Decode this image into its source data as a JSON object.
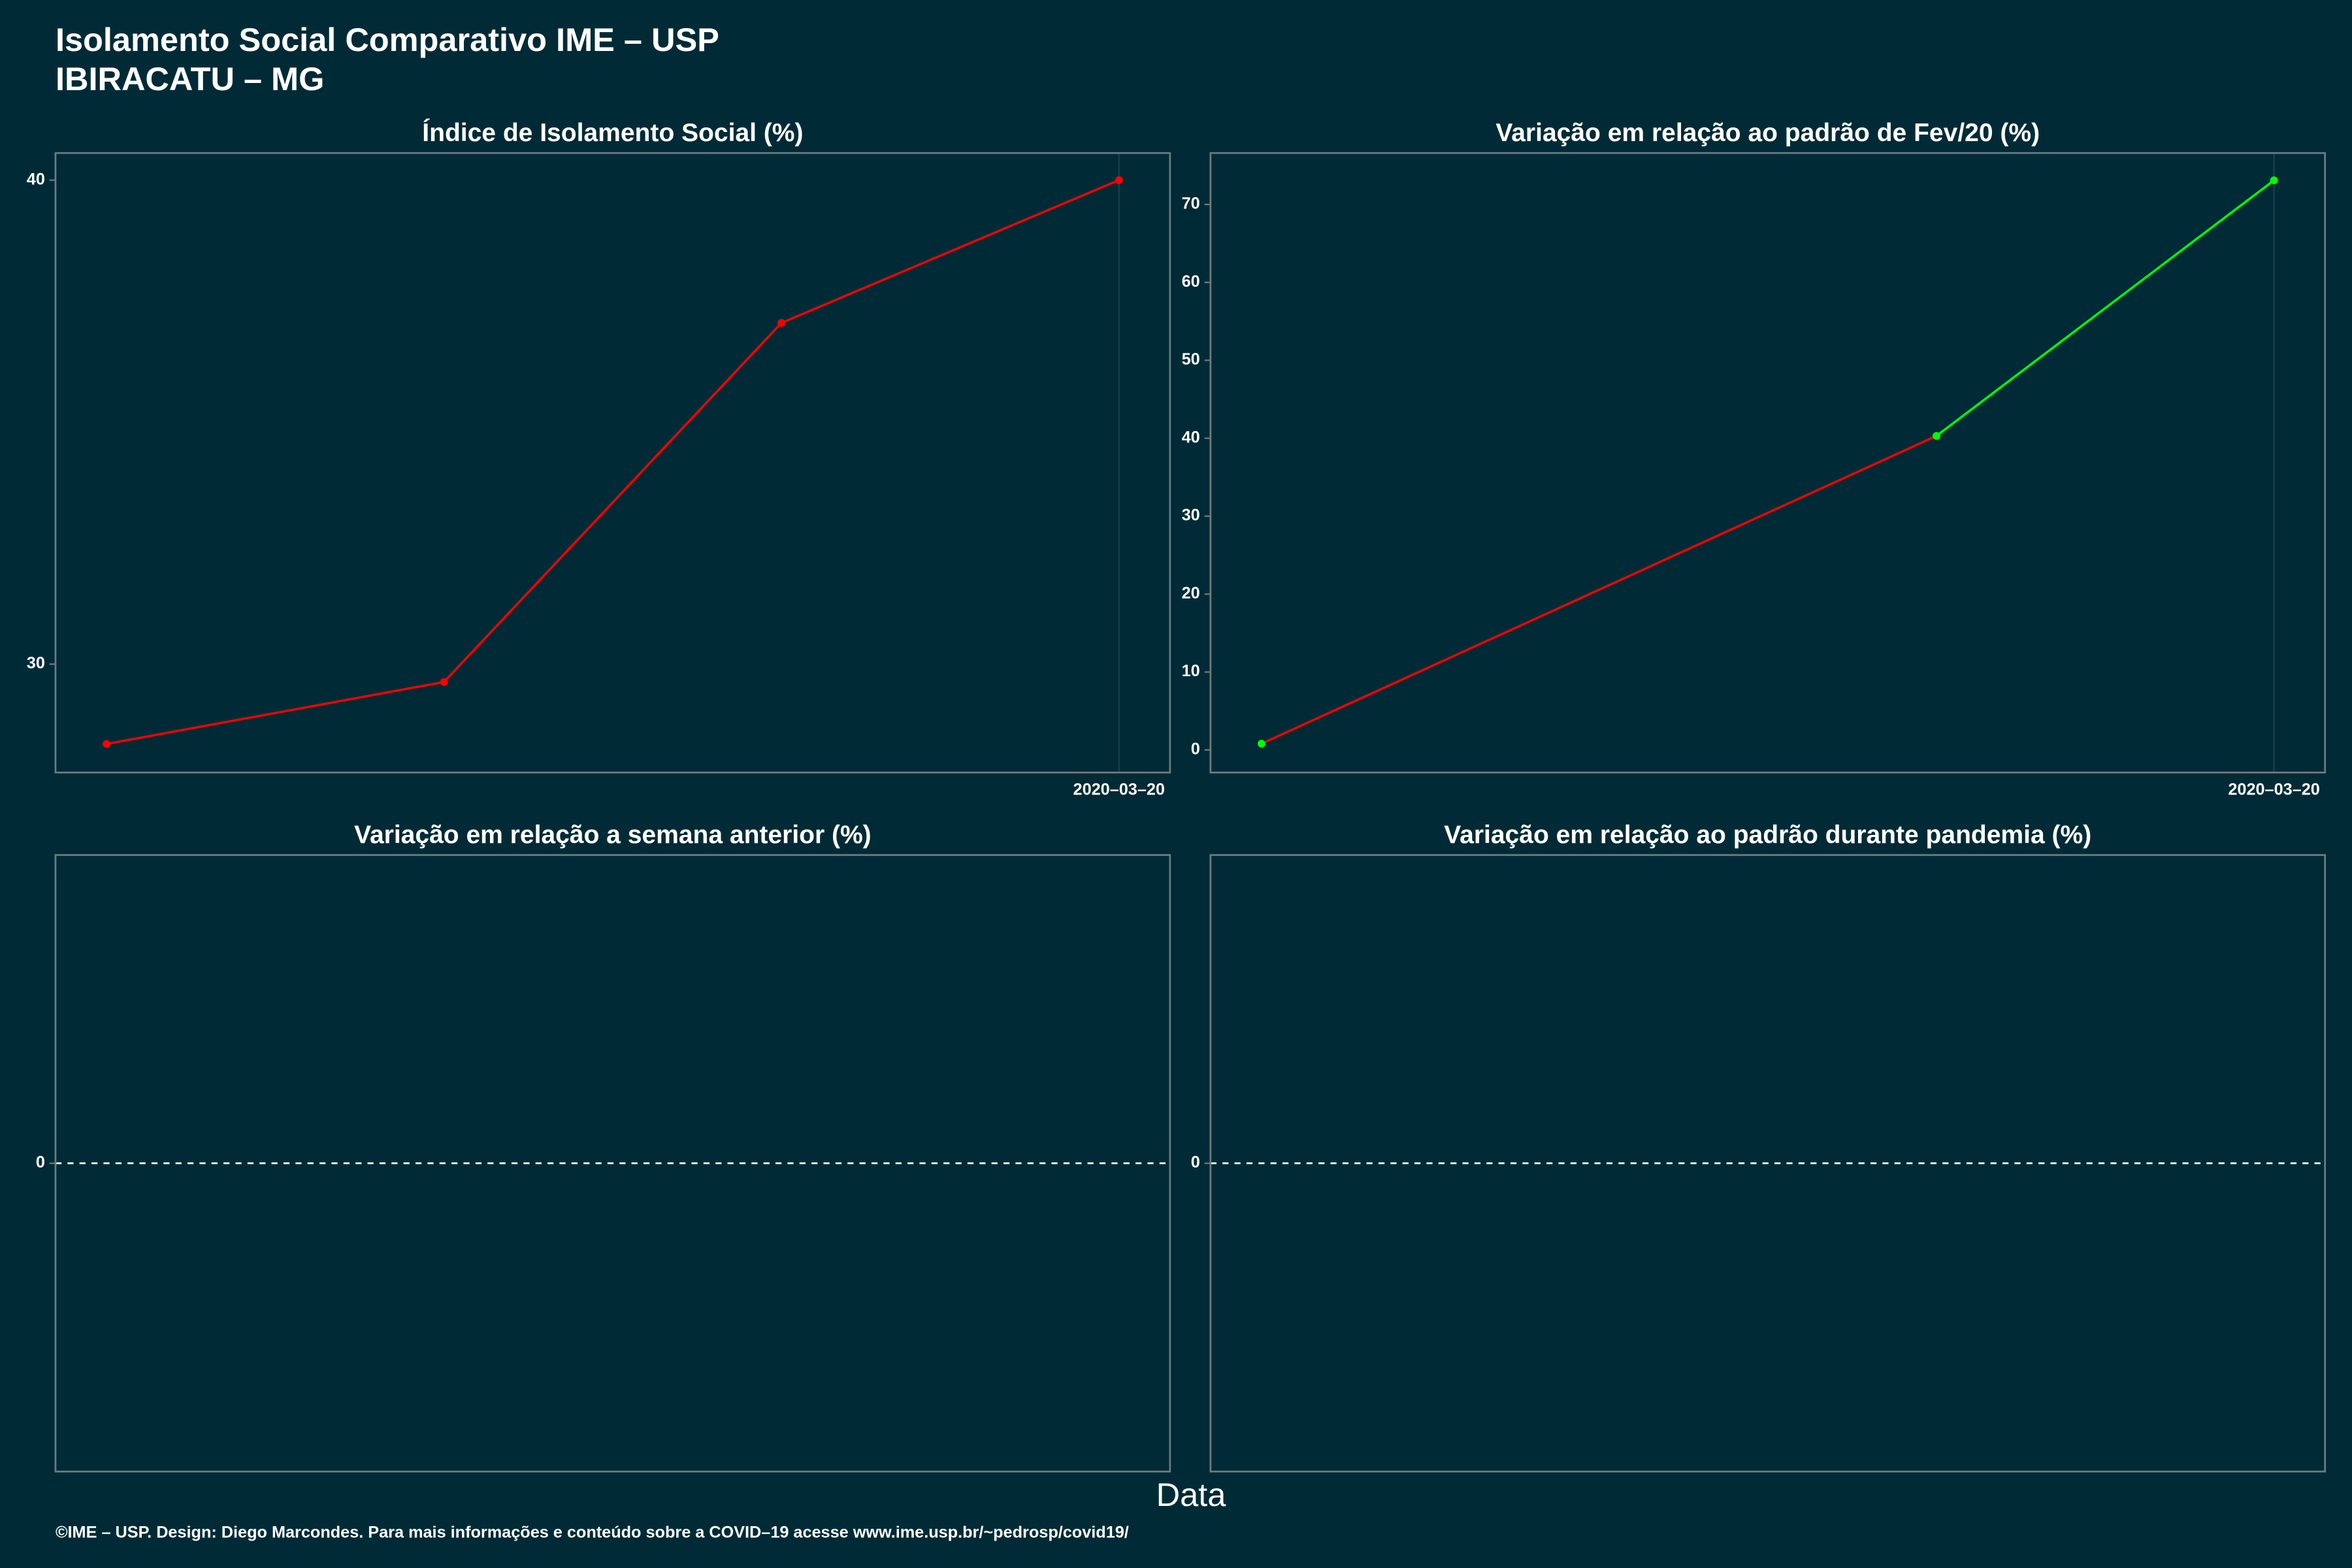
{
  "title": "Isolamento Social Comparativo IME – USP",
  "subtitle": "IBIRACATU – MG",
  "x_label": "Data",
  "footer": "©IME – USP. Design: Diego Marcondes. Para mais informações e conteúdo sobre a COVID–19 acesse www.ime.usp.br/~pedrosp/covid19/",
  "chart_data": [
    {
      "type": "line",
      "title": "Índice de Isolamento Social (%)",
      "categories": [
        null,
        null,
        null,
        "2020–03–20"
      ],
      "values": [
        28.35,
        29.63,
        37.05,
        40
      ],
      "point_colors": [
        "#ff0000",
        "#ff0000",
        "#ff0000",
        "#ff0000"
      ],
      "segment_colors": [
        "#ff0000",
        "#ff0000",
        "#ff0000"
      ],
      "ylim": [
        27.76,
        40.56
      ],
      "yticks": [
        30,
        40
      ]
    },
    {
      "type": "line",
      "title": "Variação em relação ao padrão de Fev/20 (%)",
      "categories": [
        null,
        null,
        null,
        "2020–03–20"
      ],
      "values": [
        0.8,
        null,
        40.3,
        73.1
      ],
      "point_colors": [
        "#00ff00",
        null,
        "#00ff00",
        "#00ff00"
      ],
      "segment_colors": [
        "#ff0000",
        "#00ff00"
      ],
      "ylim": [
        -2.9,
        76.6
      ],
      "yticks": [
        0,
        10,
        20,
        30,
        40,
        50,
        60,
        70
      ]
    },
    {
      "type": "line",
      "title": "Variação em relação a semana anterior (%)",
      "categories": [],
      "values": [],
      "ylim": [
        -1,
        1
      ],
      "yticks": [
        0
      ],
      "hline": 0
    },
    {
      "type": "line",
      "title": "Variação em relação ao padrão durante pandemia (%)",
      "categories": [],
      "values": [],
      "ylim": [
        -1,
        1
      ],
      "yticks": [
        0
      ],
      "hline": 0
    }
  ]
}
